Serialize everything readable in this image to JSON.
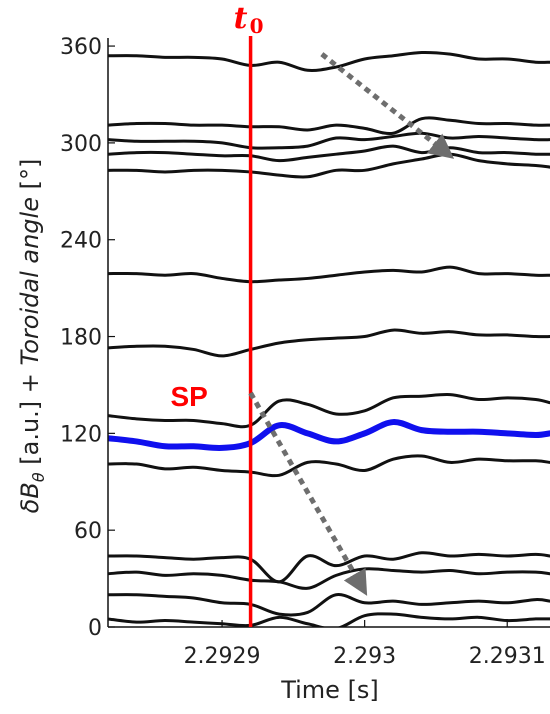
{
  "chart_data": {
    "type": "line",
    "xlabel": "Time [s]",
    "ylabel": "δB_θ [a.u.] + Toroidal angle [°]",
    "ylabel_parts": {
      "prefix": "δ",
      "B": "B",
      "theta_sub": "θ",
      "units": " [a.u.] + ",
      "angle_word": "Toroidal angle",
      "deg": " [°]"
    },
    "xlim": [
      2.29282,
      2.29313
    ],
    "ylim": [
      0,
      365
    ],
    "x_ticks": [
      {
        "value": 2.2929,
        "label": "2.2929"
      },
      {
        "value": 2.293,
        "label": "2.293"
      },
      {
        "value": 2.2931,
        "label": "2.2931"
      }
    ],
    "y_ticks": [
      {
        "value": 0,
        "label": "0"
      },
      {
        "value": 60,
        "label": "60"
      },
      {
        "value": 120,
        "label": "120"
      },
      {
        "value": 180,
        "label": "180"
      },
      {
        "value": 240,
        "label": "240"
      },
      {
        "value": 300,
        "label": "300"
      },
      {
        "value": 360,
        "label": "360"
      }
    ],
    "grid": false,
    "legend": "none",
    "colors": {
      "trace": "#111111",
      "highlight": "#1010ee",
      "marker": "#ff0000",
      "arrow": "#6e6e6e"
    },
    "x": [
      2.29282,
      2.29284,
      2.29286,
      2.29288,
      2.2929,
      2.29292,
      2.29294,
      2.29296,
      2.29298,
      2.293,
      2.29302,
      2.29304,
      2.29306,
      2.29308,
      2.2931,
      2.29312,
      2.29313
    ],
    "series": [
      {
        "values": [
          5,
          3,
          4,
          3,
          2,
          1,
          6,
          2,
          -1,
          7,
          8,
          6,
          5,
          6,
          4,
          5,
          5
        ]
      },
      {
        "values": [
          20,
          20,
          19,
          18,
          15,
          14,
          8,
          9,
          20,
          15,
          16,
          14,
          15,
          16,
          15,
          17,
          16
        ]
      },
      {
        "values": [
          33,
          34,
          32,
          33,
          32,
          29,
          28,
          24,
          32,
          36,
          35,
          34,
          35,
          33,
          34,
          34,
          33
        ]
      },
      {
        "values": [
          44,
          44,
          43,
          42,
          43,
          42,
          28,
          44,
          38,
          44,
          42,
          46,
          44,
          45,
          44,
          45,
          44
        ]
      },
      {
        "values": [
          101,
          101,
          98,
          99,
          97,
          96,
          94,
          102,
          101,
          97,
          104,
          106,
          102,
          104,
          103,
          103,
          102
        ]
      },
      {
        "values": [
          117,
          115,
          112,
          112,
          111,
          114,
          125,
          120,
          115,
          120,
          127,
          122,
          121,
          121,
          120,
          119,
          120
        ],
        "highlight": true
      },
      {
        "values": [
          131,
          129,
          128,
          128,
          126,
          125,
          140,
          138,
          132,
          134,
          142,
          143,
          144,
          141,
          142,
          141,
          139
        ]
      },
      {
        "values": [
          173,
          174,
          174,
          172,
          168,
          172,
          176,
          178,
          179,
          180,
          184,
          182,
          183,
          181,
          181,
          180,
          180
        ]
      },
      {
        "values": [
          219,
          219,
          218,
          219,
          216,
          214,
          215,
          216,
          218,
          220,
          221,
          220,
          223,
          219,
          219,
          218,
          218
        ]
      },
      {
        "values": [
          283,
          283,
          282,
          283,
          283,
          282,
          280,
          279,
          283,
          283,
          287,
          290,
          293,
          289,
          287,
          286,
          285
        ]
      },
      {
        "values": [
          293,
          294,
          294,
          293,
          292,
          292,
          289,
          291,
          293,
          295,
          298,
          294,
          297,
          294,
          294,
          293,
          293
        ]
      },
      {
        "values": [
          302,
          301,
          301,
          301,
          300,
          297,
          297,
          298,
          303,
          302,
          304,
          306,
          303,
          304,
          303,
          302,
          302
        ]
      },
      {
        "values": [
          311,
          312,
          312,
          311,
          311,
          310,
          310,
          308,
          311,
          309,
          306,
          315,
          314,
          312,
          312,
          311,
          311
        ]
      },
      {
        "values": [
          354,
          354,
          353,
          353,
          352,
          348,
          350,
          345,
          347,
          352,
          354,
          356,
          355,
          352,
          352,
          350,
          350
        ]
      }
    ],
    "vertical_marker": {
      "x": 2.29292,
      "label_main": "t",
      "label_sub": "0"
    },
    "annotations": [
      {
        "text": "SP",
        "x": 2.29289,
        "y": 143
      }
    ],
    "arrows": [
      {
        "from": {
          "x": 2.29297,
          "y": 355
        },
        "to": {
          "x": 2.29306,
          "y": 292
        }
      },
      {
        "from": {
          "x": 2.29292,
          "y": 145
        },
        "to": {
          "x": 2.293,
          "y": 22
        }
      }
    ]
  }
}
